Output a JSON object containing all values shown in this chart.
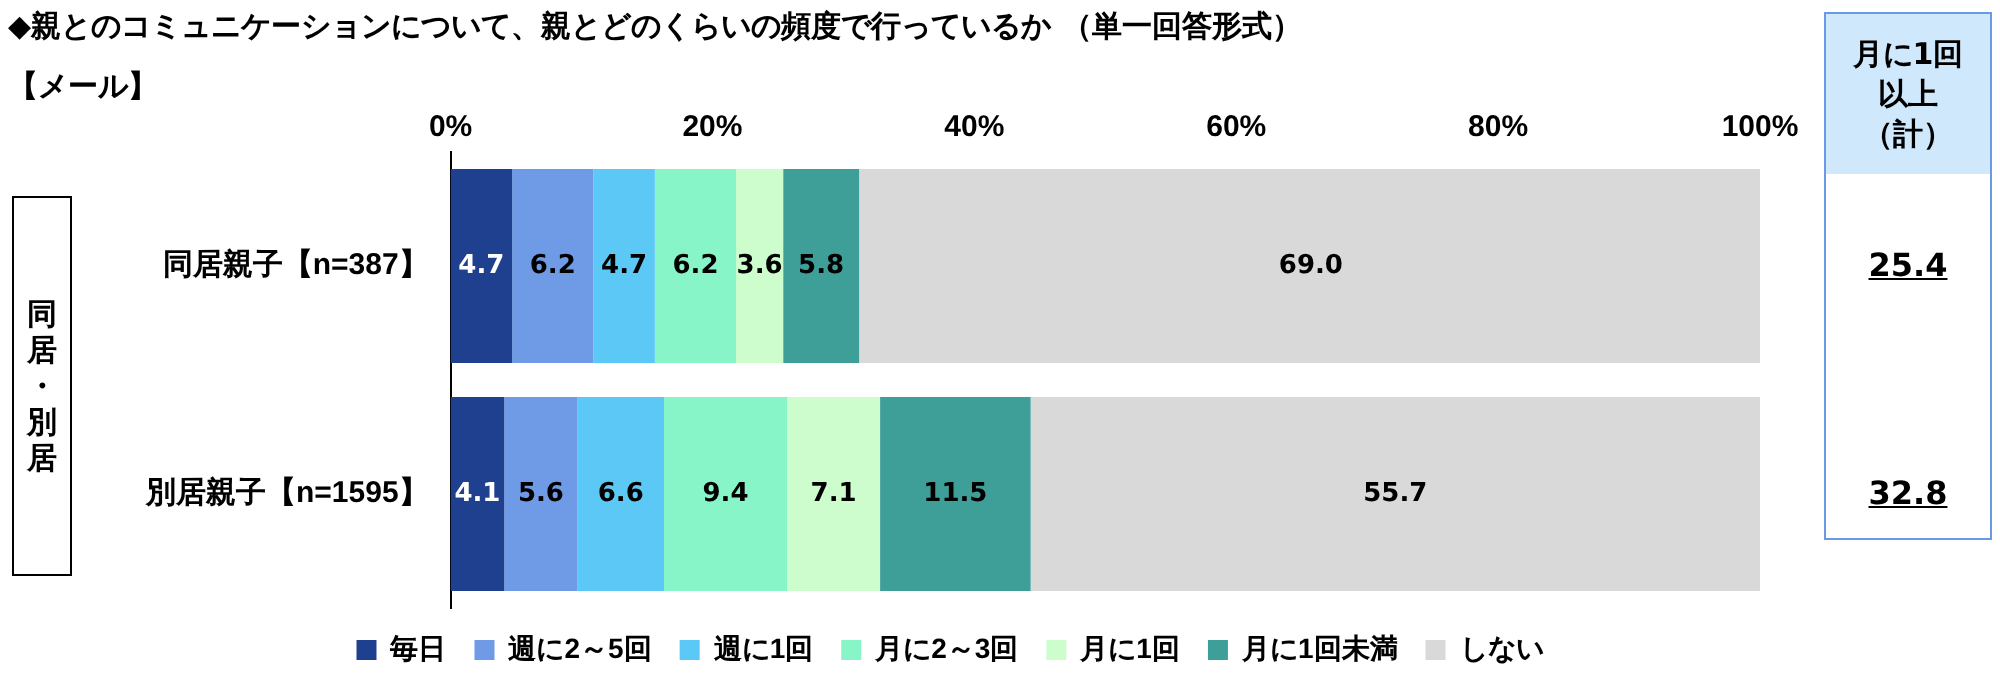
{
  "chart_data": {
    "type": "bar",
    "orientation": "horizontal",
    "stacked": true,
    "title": "◆親とのコミュニケーションについて、親とどのくらいの頻度で行っているか （単一回答形式）",
    "subtitle": "【メール】",
    "categories": [
      "同居親子【n=387】",
      "別居親子【n=1595】"
    ],
    "series": [
      {
        "name": "毎日",
        "color": "#1f3f8f",
        "values": [
          4.7,
          4.1
        ],
        "value_labels": [
          "4.7",
          "4.1"
        ]
      },
      {
        "name": "週に2～5回",
        "color": "#6e9ae6",
        "values": [
          6.2,
          5.6
        ],
        "value_labels": [
          "6.2",
          "5.6"
        ]
      },
      {
        "name": "週に1回",
        "color": "#5cc8f6",
        "values": [
          4.7,
          6.6
        ],
        "value_labels": [
          "4.7",
          "6.6"
        ]
      },
      {
        "name": "月に2～3回",
        "color": "#88f5c8",
        "values": [
          6.2,
          9.4
        ],
        "value_labels": [
          "6.2",
          "9.4"
        ]
      },
      {
        "name": "月に1回",
        "color": "#cdfccd",
        "values": [
          3.6,
          7.1
        ],
        "value_labels": [
          "3.6",
          "7.1"
        ]
      },
      {
        "name": "月に1回未満",
        "color": "#3e9e98",
        "values": [
          5.8,
          11.5
        ],
        "value_labels": [
          "5.8",
          "11.5"
        ]
      },
      {
        "name": "しない",
        "color": "#d9d9d9",
        "values": [
          69.0,
          55.7
        ],
        "value_labels": [
          "69.0",
          "55.7"
        ]
      }
    ],
    "xlim": [
      0,
      100
    ],
    "xticks": [
      {
        "value": 0,
        "label": "0%"
      },
      {
        "value": 20,
        "label": "20%"
      },
      {
        "value": 40,
        "label": "40%"
      },
      {
        "value": 60,
        "label": "60%"
      },
      {
        "value": 80,
        "label": "80%"
      },
      {
        "value": 100,
        "label": "100%"
      }
    ],
    "legend": "bottom",
    "annotations": [
      "同居・別居",
      "月に1回以上（計）",
      "25.4",
      "32.8"
    ]
  }
}
